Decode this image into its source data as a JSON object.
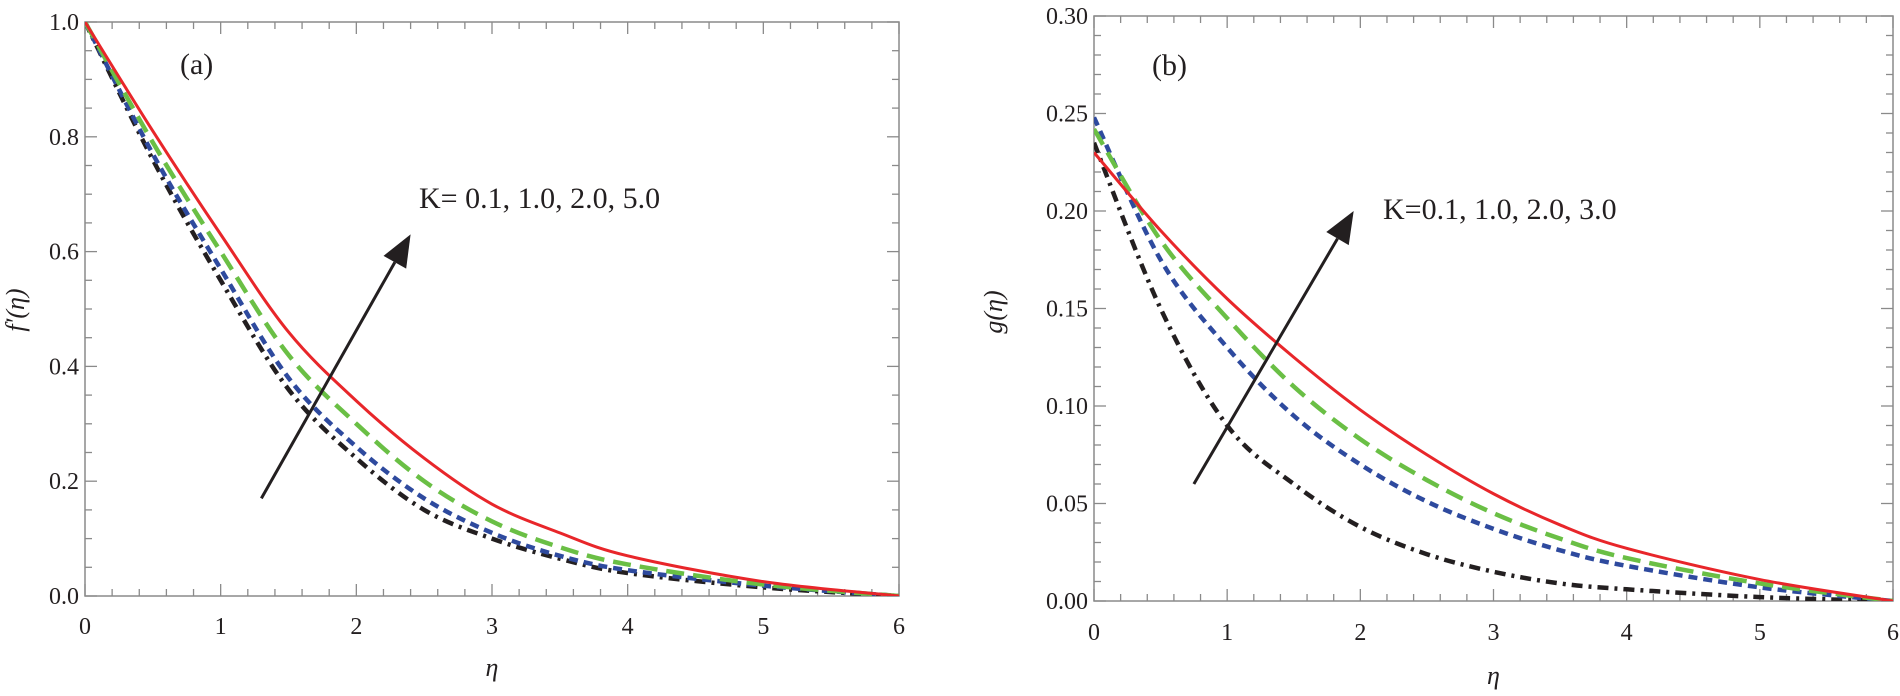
{
  "chart_data": [
    {
      "type": "line",
      "panel_label": "(a)",
      "xlabel": "η",
      "ylabel": "f′(η)",
      "xlim": [
        0,
        6
      ],
      "ylim": [
        0,
        1
      ],
      "xticks": [
        "0",
        "1",
        "2",
        "3",
        "4",
        "5",
        "6"
      ],
      "yticks": [
        "0.0",
        "0.2",
        "0.4",
        "0.6",
        "0.8",
        "1.0"
      ],
      "grid": false,
      "annotation": "K= 0.1, 1.0, 2.0, 5.0",
      "arrow": {
        "from": [
          1.3,
          0.17
        ],
        "to": [
          2.4,
          0.63
        ]
      },
      "x": [
        0,
        0.5,
        1,
        1.5,
        2,
        2.5,
        3,
        3.5,
        4,
        5,
        6
      ],
      "series": [
        {
          "name": "K=0.1",
          "color": "#231f20",
          "style": "dashdot",
          "values": [
            1.0,
            0.76,
            0.55,
            0.36,
            0.24,
            0.15,
            0.1,
            0.065,
            0.04,
            0.015,
            0.0
          ]
        },
        {
          "name": "K=1.0",
          "color": "#2e4a9e",
          "style": "short-dash",
          "values": [
            1.0,
            0.77,
            0.57,
            0.38,
            0.26,
            0.17,
            0.11,
            0.07,
            0.045,
            0.018,
            0.0
          ]
        },
        {
          "name": "K=2.0",
          "color": "#6abf45",
          "style": "long-dash",
          "values": [
            1.0,
            0.79,
            0.6,
            0.42,
            0.3,
            0.2,
            0.13,
            0.085,
            0.055,
            0.02,
            0.0
          ]
        },
        {
          "name": "K=5.0",
          "color": "#e8262a",
          "style": "solid",
          "values": [
            1.0,
            0.81,
            0.63,
            0.46,
            0.34,
            0.24,
            0.16,
            0.11,
            0.07,
            0.025,
            0.0
          ]
        }
      ]
    },
    {
      "type": "line",
      "panel_label": "(b)",
      "xlabel": "η",
      "ylabel": "g(η)",
      "xlim": [
        0,
        6
      ],
      "ylim": [
        0,
        0.3
      ],
      "xticks": [
        "0",
        "1",
        "2",
        "3",
        "4",
        "5",
        "6"
      ],
      "yticks": [
        "0.00",
        "0.05",
        "0.10",
        "0.15",
        "0.20",
        "0.25",
        "0.30"
      ],
      "grid": false,
      "annotation": "K=0.1, 1.0, 2.0, 3.0",
      "arrow": {
        "from": [
          0.75,
          0.06
        ],
        "to": [
          1.95,
          0.2
        ]
      },
      "x": [
        0,
        0.5,
        1,
        1.5,
        2,
        2.5,
        3,
        3.5,
        4,
        5,
        6
      ],
      "series": [
        {
          "name": "K=0.1",
          "color": "#231f20",
          "style": "dashdot",
          "values": [
            0.235,
            0.15,
            0.09,
            0.06,
            0.038,
            0.024,
            0.015,
            0.009,
            0.006,
            0.002,
            0.0
          ]
        },
        {
          "name": "K=1.0",
          "color": "#2e4a9e",
          "style": "short-dash",
          "values": [
            0.248,
            0.175,
            0.13,
            0.095,
            0.07,
            0.051,
            0.037,
            0.026,
            0.018,
            0.007,
            0.0
          ]
        },
        {
          "name": "K=2.0",
          "color": "#6abf45",
          "style": "long-dash",
          "values": [
            0.242,
            0.185,
            0.145,
            0.11,
            0.083,
            0.062,
            0.045,
            0.032,
            0.022,
            0.009,
            0.0
          ]
        },
        {
          "name": "K=3.0",
          "color": "#e8262a",
          "style": "solid",
          "values": [
            0.23,
            0.19,
            0.155,
            0.125,
            0.098,
            0.075,
            0.055,
            0.039,
            0.027,
            0.011,
            0.0
          ]
        }
      ]
    }
  ]
}
